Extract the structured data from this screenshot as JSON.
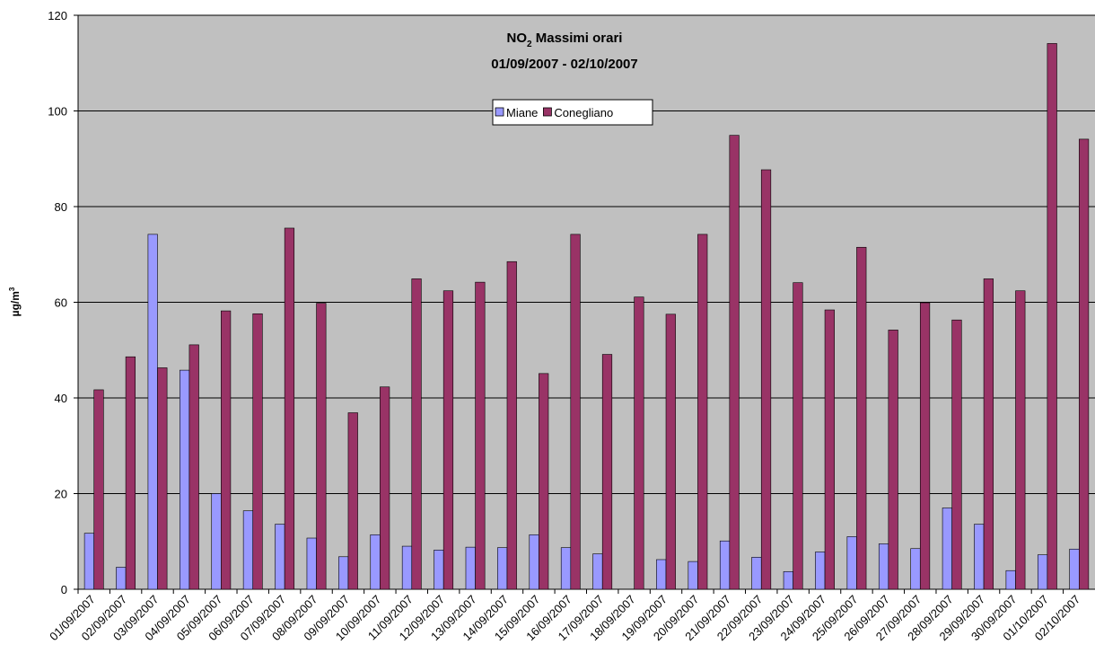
{
  "chart_data": {
    "type": "bar",
    "title": [
      "NO",
      "2",
      " Massimi orari"
    ],
    "subtitle": "01/09/2007 - 02/10/2007",
    "y_label": [
      "µg/m",
      "3"
    ],
    "categories": [
      "01/09/2007",
      "02/09/2007",
      "03/09/2007",
      "04/09/2007",
      "05/09/2007",
      "06/09/2007",
      "07/09/2007",
      "08/09/2007",
      "09/09/2007",
      "10/09/2007",
      "11/09/2007",
      "12/09/2007",
      "13/09/2007",
      "14/09/2007",
      "15/09/2007",
      "16/09/2007",
      "17/09/2007",
      "18/09/2007",
      "19/09/2007",
      "20/09/2007",
      "21/09/2007",
      "22/09/2007",
      "23/09/2007",
      "24/09/2007",
      "25/09/2007",
      "26/09/2007",
      "27/09/2007",
      "28/09/2007",
      "29/09/2007",
      "30/09/2007",
      "01/10/2007",
      "02/10/2007"
    ],
    "series": [
      {
        "name": "Miane",
        "color": "#9999ff",
        "values": [
          11.7,
          4.6,
          74.2,
          45.8,
          20,
          16.4,
          13.6,
          10.7,
          6.8,
          11.4,
          9,
          8.2,
          8.8,
          8.7,
          11.4,
          8.7,
          7.4,
          null,
          6.2,
          5.8,
          10.1,
          6.7,
          3.7,
          7.8,
          11,
          9.5,
          8.5,
          17,
          13.6,
          3.9,
          7.2,
          8.4
        ]
      },
      {
        "name": "Conegliano",
        "color": "#993366",
        "values": [
          41.7,
          48.6,
          46.3,
          51.1,
          58.2,
          57.6,
          75.5,
          59.8,
          36.9,
          42.3,
          64.9,
          62.4,
          64.2,
          68.5,
          45.1,
          74.2,
          49.1,
          61.1,
          57.5,
          74.2,
          94.9,
          87.7,
          64.1,
          58.4,
          71.5,
          54.2,
          59.9,
          56.3,
          64.9,
          62.4,
          114.1,
          94.1
        ]
      }
    ],
    "ylim": [
      0,
      120
    ],
    "yticks": [
      0,
      20,
      40,
      60,
      80,
      100,
      120
    ],
    "grid": true,
    "plot_background": "#c0c0c0",
    "legend": "top"
  }
}
